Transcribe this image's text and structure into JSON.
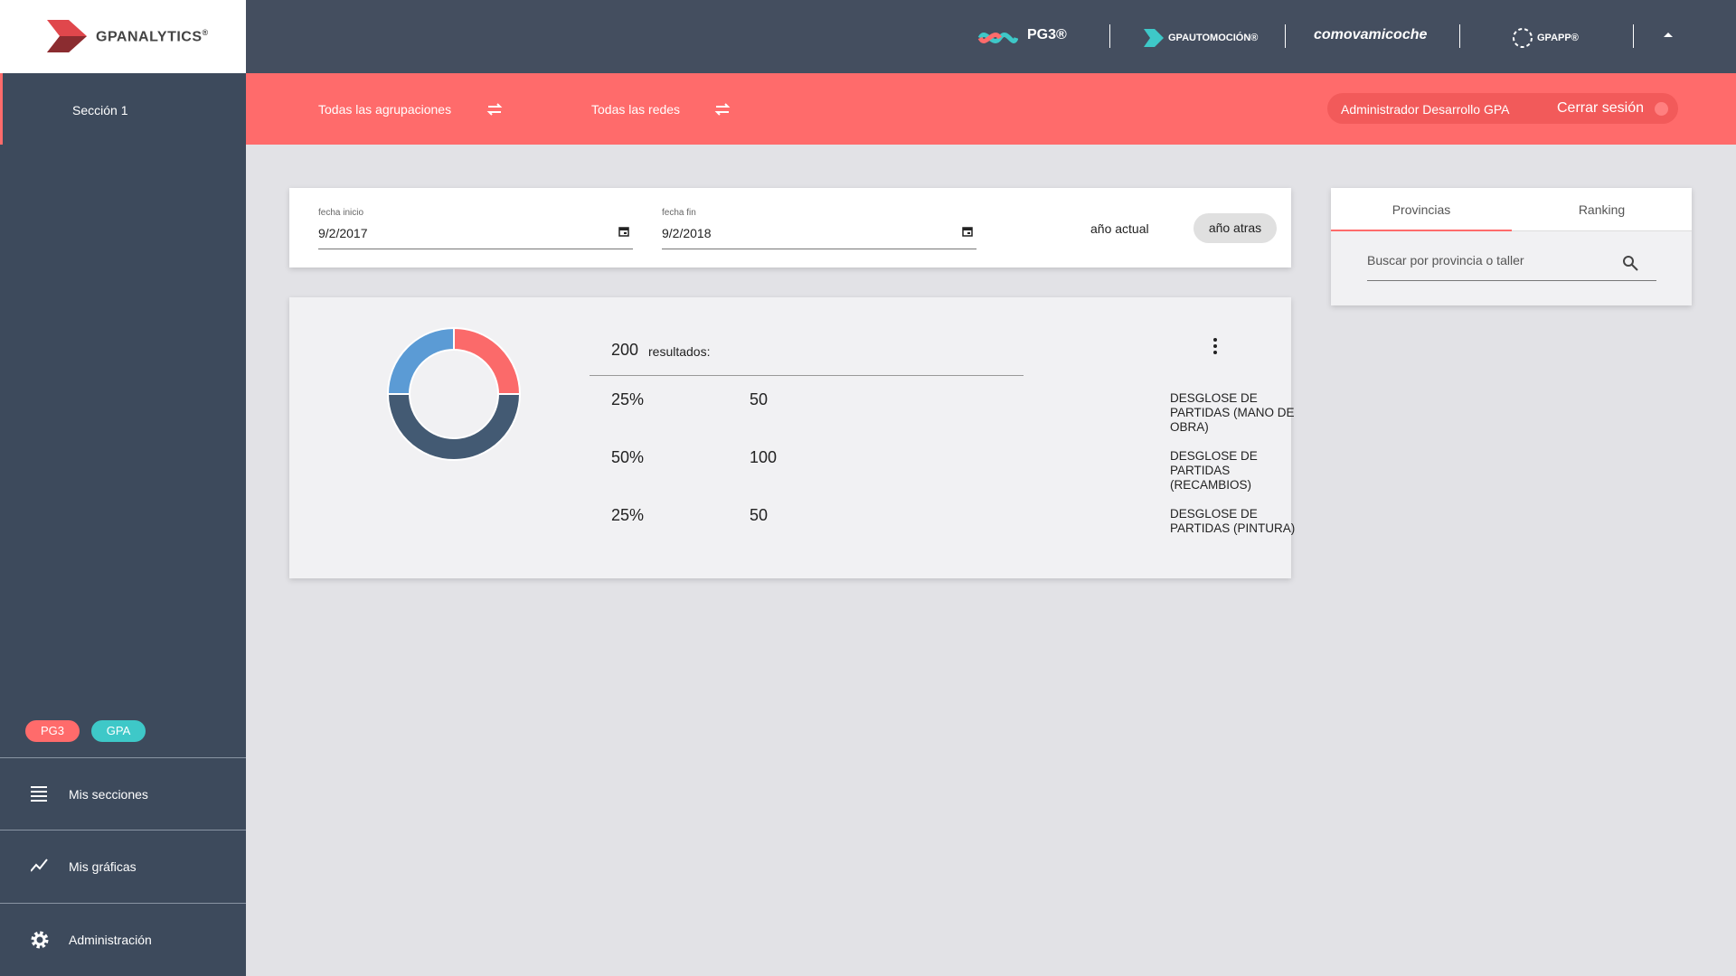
{
  "logo": {
    "brand": "GPANALYTICS",
    "mark": "®"
  },
  "header": {
    "brands": [
      "PG3®",
      "GPAUTOMOCIÓN®",
      "comovamicoche",
      "GPAPP®"
    ]
  },
  "toolbar": {
    "groupings": "Todas las agrupaciones",
    "networks": "Todas las redes",
    "user": "Administrador Desarrollo GPA",
    "logout": "Cerrar sesión"
  },
  "sidebar": {
    "section": "Sección 1",
    "tags": [
      "PG3",
      "GPA"
    ],
    "menu": [
      "Mis secciones",
      "Mis gráficas",
      "Administración"
    ]
  },
  "filters": {
    "start_label": "fecha inicio",
    "start_value": "9/2/2017",
    "end_label": "fecha fin",
    "end_value": "9/2/2018",
    "current_year": "año actual",
    "previous_year": "año atras"
  },
  "side_panel": {
    "tabs": [
      "Provincias",
      "Ranking"
    ],
    "search_placeholder": "Buscar por provincia o taller"
  },
  "chart_data": {
    "type": "pie",
    "donut": true,
    "categories": [
      "DESGLOSE DE PARTIDAS (MANO DE OBRA)",
      "DESGLOSE DE PARTIDAS (RECAMBIOS)",
      "DESGLOSE DE PARTIDAS (PINTURA)"
    ],
    "values": [
      25,
      50,
      25
    ],
    "value_labels": [
      "25%",
      "50%",
      "25%"
    ],
    "counts": [
      50,
      100,
      50
    ],
    "colors": [
      "#fb6a6a",
      "#435a73",
      "#5b9bd5"
    ],
    "total": 200,
    "total_label": "resultados:"
  }
}
